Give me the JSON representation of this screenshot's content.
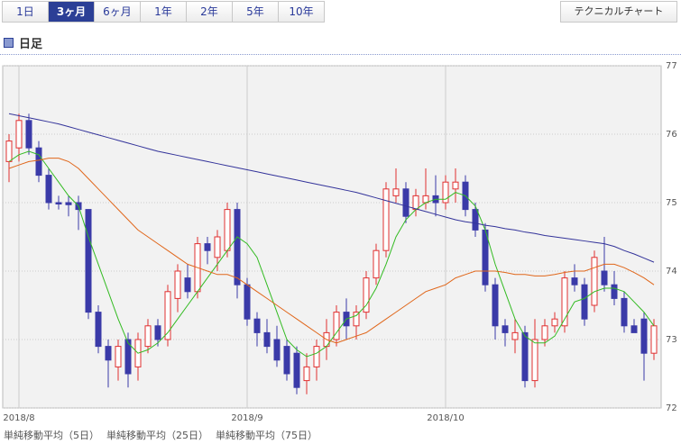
{
  "tabs": [
    "1日",
    "3ヶ月",
    "6ヶ月",
    "1年",
    "2年",
    "5年",
    "10年"
  ],
  "selected_tab": 1,
  "technical_button": "テクニカルチャート",
  "section_title": "日足",
  "chart_data": {
    "type": "candlestick",
    "up_color": "#e03030",
    "down_color": "#3a3aa8",
    "open": [
      75.6,
      75.8,
      76.2,
      75.8,
      75.4,
      75.0,
      75.0,
      75.0,
      74.9,
      73.4,
      72.9,
      72.6,
      73.0,
      72.6,
      72.9,
      73.2,
      73.0,
      73.6,
      73.9,
      73.7,
      74.4,
      74.2,
      74.3,
      74.9,
      73.8,
      73.3,
      73.1,
      73.0,
      72.9,
      72.8,
      72.4,
      72.6,
      72.9,
      73.0,
      73.4,
      73.2,
      73.4,
      73.9,
      74.3,
      75.1,
      75.2,
      74.9,
      75.0,
      75.1,
      75.0,
      75.2,
      75.3,
      74.9,
      74.6,
      73.8,
      73.2,
      73.0,
      73.1,
      72.4,
      73.0,
      73.2,
      73.2,
      73.9,
      73.8,
      73.5,
      74.0,
      73.8,
      73.6,
      73.2,
      73.3,
      72.8
    ],
    "close": [
      75.9,
      76.2,
      75.8,
      75.4,
      75.0,
      74.98,
      74.97,
      74.9,
      73.4,
      72.9,
      72.7,
      72.9,
      72.5,
      73.0,
      73.2,
      73.0,
      73.7,
      74.0,
      73.7,
      74.4,
      74.3,
      74.5,
      74.9,
      73.8,
      73.3,
      73.1,
      72.9,
      72.7,
      72.5,
      72.3,
      72.6,
      72.9,
      73.1,
      73.4,
      73.2,
      73.4,
      73.9,
      74.3,
      75.2,
      75.2,
      74.8,
      75.1,
      75.1,
      75.0,
      75.3,
      75.3,
      74.9,
      74.6,
      73.8,
      73.2,
      73.1,
      73.1,
      72.4,
      73.0,
      73.2,
      73.3,
      73.9,
      73.8,
      73.3,
      74.2,
      73.8,
      73.6,
      73.2,
      73.1,
      72.8,
      73.2
    ],
    "high": [
      76.0,
      76.3,
      76.3,
      75.9,
      75.5,
      75.1,
      75.1,
      75.1,
      74.9,
      73.5,
      73.0,
      73.0,
      73.1,
      73.1,
      73.3,
      73.3,
      73.8,
      74.1,
      74.1,
      74.5,
      74.5,
      74.6,
      75.0,
      75.0,
      73.9,
      73.4,
      73.3,
      73.2,
      73.0,
      72.9,
      72.8,
      73.0,
      73.3,
      73.5,
      73.6,
      73.5,
      74.0,
      74.4,
      75.3,
      75.5,
      75.3,
      75.2,
      75.5,
      75.4,
      75.4,
      75.5,
      75.4,
      75.0,
      74.7,
      73.9,
      73.3,
      73.3,
      73.2,
      73.3,
      73.3,
      73.4,
      74.0,
      74.1,
      73.9,
      74.3,
      74.5,
      74.0,
      73.7,
      73.3,
      73.4,
      73.3
    ],
    "low": [
      75.3,
      75.6,
      75.7,
      75.3,
      74.9,
      74.9,
      74.8,
      74.6,
      73.3,
      72.8,
      72.3,
      72.4,
      72.3,
      72.4,
      72.8,
      72.9,
      72.9,
      73.4,
      73.6,
      73.6,
      74.1,
      74.0,
      74.2,
      73.6,
      73.2,
      72.9,
      72.8,
      72.6,
      72.4,
      72.2,
      72.2,
      72.4,
      72.7,
      72.9,
      73.0,
      73.0,
      73.3,
      73.8,
      74.2,
      75.0,
      74.7,
      74.8,
      74.9,
      74.8,
      74.9,
      75.0,
      74.8,
      74.5,
      73.7,
      73.0,
      72.9,
      72.8,
      72.3,
      72.3,
      72.9,
      73.1,
      73.1,
      73.7,
      73.2,
      73.4,
      73.7,
      73.5,
      73.1,
      73.1,
      72.4,
      72.7
    ],
    "series": [
      {
        "name": "単純移動平均（5日）",
        "color": "#33bb22",
        "values": [
          75.6,
          75.7,
          75.75,
          75.7,
          75.5,
          75.3,
          75.1,
          74.95,
          74.5,
          74.1,
          73.7,
          73.3,
          72.95,
          72.8,
          72.85,
          72.95,
          73.1,
          73.3,
          73.5,
          73.7,
          73.9,
          74.1,
          74.3,
          74.5,
          74.4,
          74.2,
          73.8,
          73.4,
          73.0,
          72.85,
          72.75,
          72.8,
          72.9,
          73.1,
          73.3,
          73.35,
          73.5,
          73.75,
          74.1,
          74.5,
          74.75,
          74.9,
          75.0,
          75.05,
          75.05,
          75.15,
          75.1,
          74.95,
          74.6,
          74.1,
          73.7,
          73.3,
          73.05,
          72.95,
          72.95,
          73.05,
          73.3,
          73.55,
          73.6,
          73.7,
          73.75,
          73.75,
          73.7,
          73.55,
          73.4,
          73.2
        ]
      },
      {
        "name": "単純移動平均（25日）",
        "color": "#e0661a",
        "values": [
          75.5,
          75.55,
          75.6,
          75.62,
          75.65,
          75.65,
          75.6,
          75.5,
          75.35,
          75.2,
          75.05,
          74.9,
          74.75,
          74.6,
          74.5,
          74.4,
          74.3,
          74.2,
          74.1,
          74.05,
          74.0,
          73.95,
          73.95,
          73.9,
          73.8,
          73.7,
          73.6,
          73.5,
          73.4,
          73.3,
          73.2,
          73.1,
          73.0,
          72.95,
          73.0,
          73.05,
          73.1,
          73.2,
          73.3,
          73.4,
          73.5,
          73.6,
          73.7,
          73.75,
          73.8,
          73.9,
          73.95,
          74.0,
          74.0,
          74.0,
          73.98,
          73.95,
          73.95,
          73.93,
          73.93,
          73.95,
          73.98,
          74.0,
          74.0,
          74.05,
          74.1,
          74.1,
          74.05,
          73.98,
          73.9,
          73.8
        ]
      },
      {
        "name": "単純移動平均（75日）",
        "color": "#33339a",
        "values": [
          76.3,
          76.27,
          76.24,
          76.21,
          76.18,
          76.15,
          76.11,
          76.07,
          76.03,
          75.99,
          75.95,
          75.91,
          75.87,
          75.83,
          75.79,
          75.75,
          75.72,
          75.69,
          75.66,
          75.63,
          75.6,
          75.57,
          75.54,
          75.51,
          75.48,
          75.45,
          75.42,
          75.39,
          75.36,
          75.33,
          75.3,
          75.27,
          75.24,
          75.21,
          75.18,
          75.15,
          75.11,
          75.07,
          75.03,
          74.99,
          74.95,
          74.91,
          74.87,
          74.83,
          74.79,
          74.75,
          74.72,
          74.7,
          74.67,
          74.65,
          74.62,
          74.6,
          74.57,
          74.55,
          74.52,
          74.5,
          74.48,
          74.46,
          74.44,
          74.42,
          74.4,
          74.36,
          74.3,
          74.25,
          74.19,
          74.13
        ]
      }
    ],
    "ylim": [
      72,
      77
    ],
    "yticks": [
      72,
      73,
      74,
      75,
      76,
      77
    ],
    "xticks": [
      {
        "value": 1,
        "label": "2018/8"
      },
      {
        "value": 24,
        "label": "2018/9"
      },
      {
        "value": 44,
        "label": "2018/10"
      }
    ],
    "grid": true
  }
}
